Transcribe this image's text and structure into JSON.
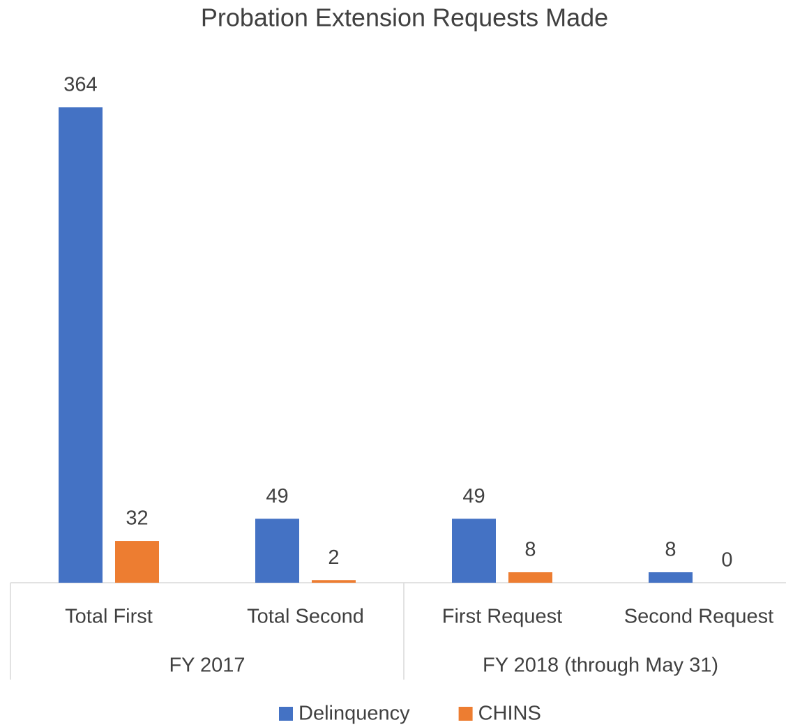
{
  "chart_data": {
    "type": "bar",
    "title": "Probation Extension Requests Made",
    "groups": [
      {
        "name": "FY 2017",
        "categories": [
          "Total First",
          "Total Second"
        ]
      },
      {
        "name": "FY 2018 (through May 31)",
        "categories": [
          "First Request",
          "Second Request"
        ]
      }
    ],
    "series": [
      {
        "name": "Delinquency",
        "color": "#4472c4",
        "values": [
          364,
          49,
          49,
          8
        ]
      },
      {
        "name": "CHINS",
        "color": "#ed7d31",
        "values": [
          32,
          2,
          8,
          0
        ]
      }
    ],
    "legend": "bottom"
  }
}
